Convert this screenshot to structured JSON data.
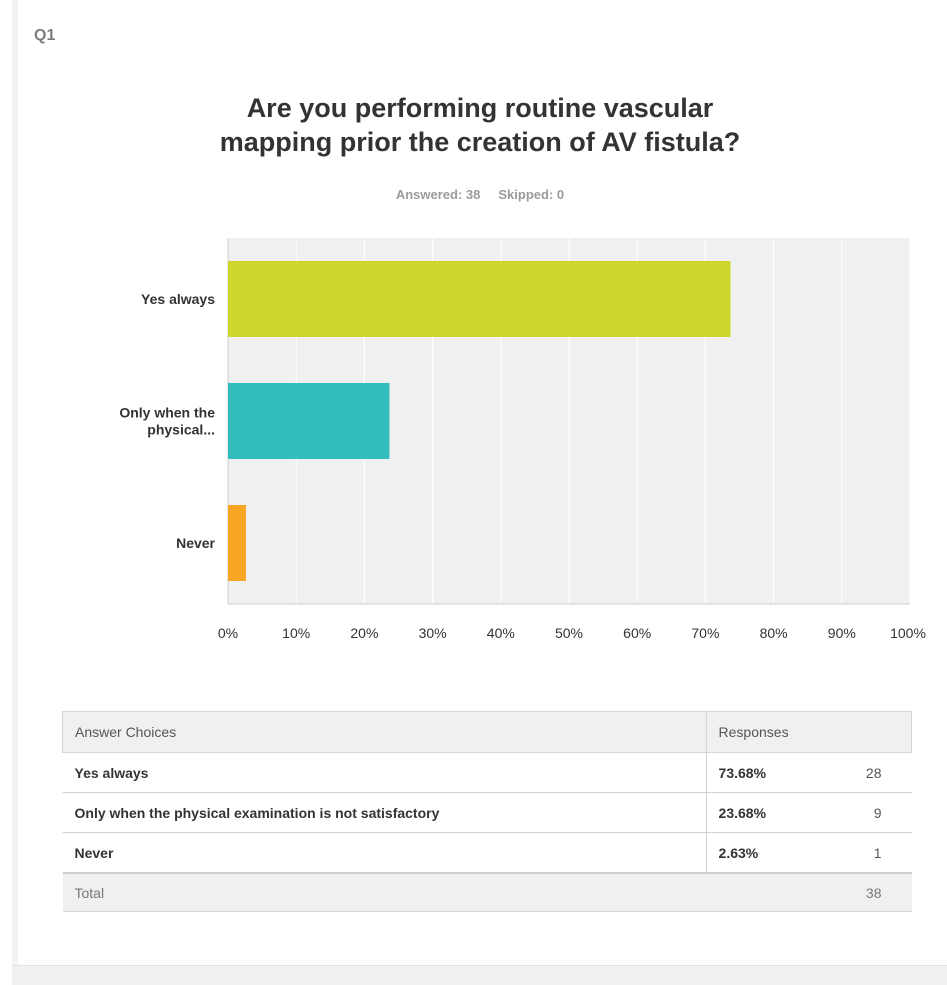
{
  "question_number": "Q1",
  "title_line1": "Are you performing routine vascular",
  "title_line2": "mapping prior the creation of AV fistula?",
  "answered_text": "Answered: 38",
  "skipped_text": "Skipped: 0",
  "chart_data": {
    "type": "bar",
    "orientation": "horizontal",
    "categories": [
      "Yes always",
      "Only when the physical...",
      "Never"
    ],
    "values": [
      73.68,
      23.68,
      2.63
    ],
    "colors": [
      "#cdd62a",
      "#33bdbd",
      "#f6a623"
    ],
    "xlim": [
      0,
      100
    ],
    "x_ticks": [
      "0%",
      "10%",
      "20%",
      "30%",
      "40%",
      "50%",
      "60%",
      "70%",
      "80%",
      "90%",
      "100%"
    ],
    "grid": true,
    "plot_background": "#f0f0f0"
  },
  "table": {
    "headers": [
      "Answer Choices",
      "Responses"
    ],
    "rows": [
      {
        "choice": "Yes always",
        "percent": "73.68%",
        "count": "28"
      },
      {
        "choice": "Only when the physical examination is not satisfactory",
        "percent": "23.68%",
        "count": "9"
      },
      {
        "choice": "Never",
        "percent": "2.63%",
        "count": "1"
      }
    ],
    "total_label": "Total",
    "total_count": "38"
  }
}
